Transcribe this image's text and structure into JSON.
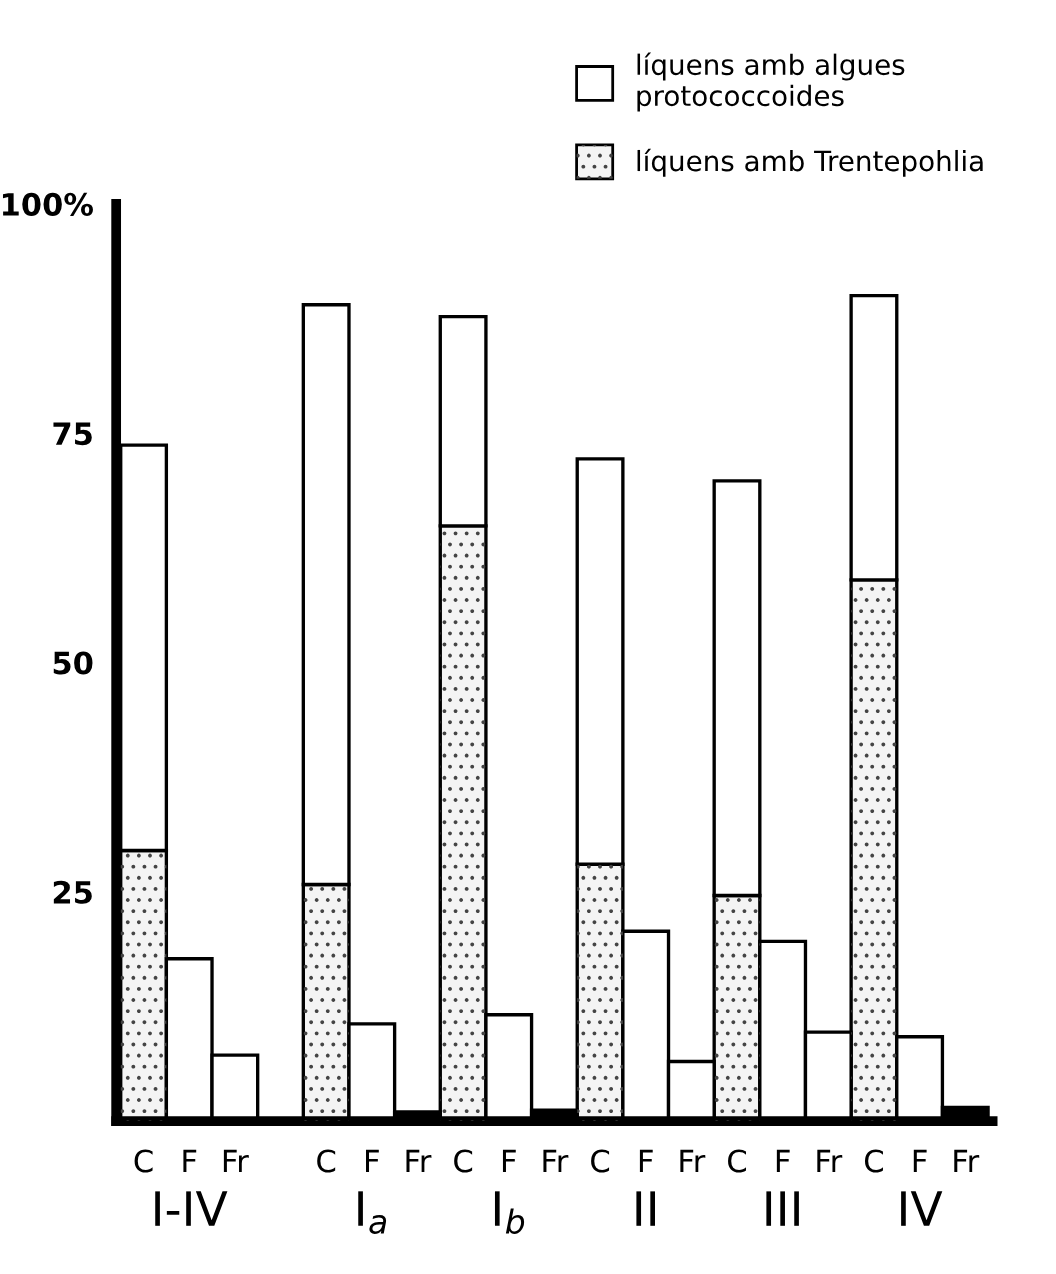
{
  "chart_data": {
    "type": "bar",
    "stacked": true,
    "categories": [
      "C",
      "F",
      "Fr",
      null,
      "C",
      "F",
      "Fr",
      "C",
      "F",
      "Fr",
      "C",
      "F",
      "Fr",
      "C",
      "F",
      "Fr",
      "C",
      "F",
      "Fr"
    ],
    "series": [
      {
        "name": "líquens amb Trentepohlia",
        "color": "#f4f4f4",
        "values": [
          29.5,
          null,
          null,
          null,
          25.8,
          null,
          null,
          64.9,
          null,
          null,
          28,
          null,
          null,
          24.6,
          null,
          null,
          59,
          null,
          null
        ]
      },
      {
        "name": "líquens amb algues protococcoides",
        "color": "#ffffff",
        "values": [
          44.2,
          17.7,
          7.2,
          null,
          63.2,
          10.6,
          null,
          22.8,
          11.6,
          null,
          44.2,
          20.7,
          6.5,
          45.2,
          19.6,
          9.7,
          31,
          9.2,
          null
        ]
      },
      {
        "color": "#000000",
        "values": [
          null,
          null,
          null,
          null,
          null,
          null,
          1,
          null,
          null,
          1.2,
          null,
          null,
          null,
          null,
          null,
          null,
          null,
          null,
          1.5
        ]
      }
    ],
    "ylim": [
      0,
      100
    ],
    "yticks": [
      {
        "value": 100,
        "label": "100%"
      },
      75,
      50,
      25
    ],
    "legend": "top right",
    "grid": false,
    "annotations": [
      "I-IV",
      "I$_{a}$",
      "I$_{b}$",
      "II",
      "III",
      "IV"
    ]
  }
}
